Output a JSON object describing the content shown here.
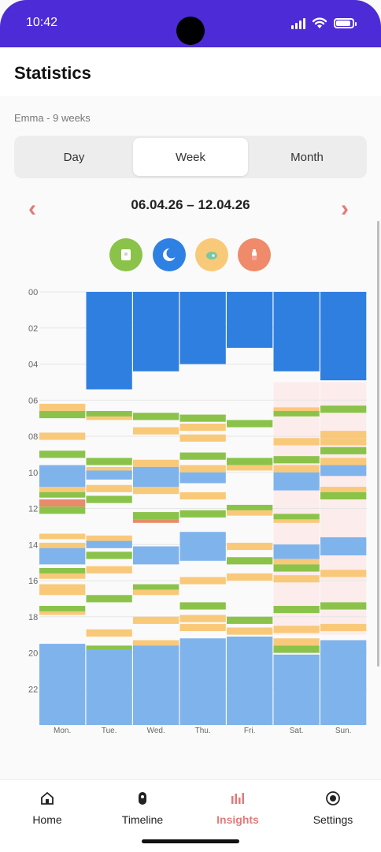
{
  "status_bar": {
    "time": "10:42"
  },
  "header": {
    "title": "Statistics"
  },
  "profile": {
    "label": "Emma - 9 weeks"
  },
  "tabs": [
    {
      "label": "Day",
      "active": false
    },
    {
      "label": "Week",
      "active": true
    },
    {
      "label": "Month",
      "active": false
    }
  ],
  "period": {
    "range": "06.04.26 – 12.04.26",
    "prev_icon": "chevron-left-icon",
    "next_icon": "chevron-right-icon"
  },
  "filters": [
    {
      "name": "diaper",
      "icon": "diaper-icon",
      "color": "#8bc34a"
    },
    {
      "name": "sleep",
      "icon": "moon-icon",
      "color": "#2f80e3"
    },
    {
      "name": "feeding",
      "icon": "breast-icon",
      "color": "#f9c97a"
    },
    {
      "name": "bottle",
      "icon": "bottle-icon",
      "color": "#ef8a6a"
    }
  ],
  "colors": {
    "sleep_dark": "#2f7fe0",
    "sleep_light": "#7fb3ec",
    "feeding": "#f9c97a",
    "diaper": "#8bc34a",
    "bottle": "#e88b6a",
    "weekend": "#fdecec",
    "accent": "#e37a7a"
  },
  "chart_data": {
    "type": "timeline",
    "y_ticks": [
      "00",
      "02",
      "04",
      "06",
      "08",
      "10",
      "12",
      "14",
      "16",
      "18",
      "20",
      "22"
    ],
    "y_range_hours": [
      0,
      24
    ],
    "days": [
      "Mon.",
      "Tue.",
      "Wed.",
      "Thu.",
      "Fri.",
      "Sat.",
      "Sun."
    ],
    "weekend_days": [
      "Sat.",
      "Sun."
    ],
    "weekend_highlight_hours": [
      5,
      19
    ],
    "events": {
      "Mon.": [
        {
          "type": "feeding",
          "start": 6.2,
          "end": 6.6
        },
        {
          "type": "diaper",
          "start": 6.6,
          "end": 7.0
        },
        {
          "type": "feeding",
          "start": 7.8,
          "end": 8.2
        },
        {
          "type": "diaper",
          "start": 8.8,
          "end": 9.2
        },
        {
          "type": "sleep_light",
          "start": 9.6,
          "end": 10.9
        },
        {
          "type": "feeding",
          "start": 10.8,
          "end": 11.2
        },
        {
          "type": "diaper",
          "start": 11.1,
          "end": 11.4
        },
        {
          "type": "bottle",
          "start": 11.5,
          "end": 11.9
        },
        {
          "type": "diaper",
          "start": 11.9,
          "end": 12.3
        },
        {
          "type": "feeding",
          "start": 13.4,
          "end": 13.7
        },
        {
          "type": "feeding",
          "start": 13.9,
          "end": 14.3
        },
        {
          "type": "sleep_light",
          "start": 14.2,
          "end": 15.1
        },
        {
          "type": "diaper",
          "start": 15.3,
          "end": 15.7
        },
        {
          "type": "feeding",
          "start": 15.6,
          "end": 15.9
        },
        {
          "type": "feeding",
          "start": 16.2,
          "end": 16.8
        },
        {
          "type": "diaper",
          "start": 17.4,
          "end": 17.8
        },
        {
          "type": "feeding",
          "start": 17.7,
          "end": 17.9
        },
        {
          "type": "sleep_light",
          "start": 19.5,
          "end": 24
        }
      ],
      "Tue.": [
        {
          "type": "sleep_dark",
          "start": 0,
          "end": 5.4
        },
        {
          "type": "diaper",
          "start": 6.6,
          "end": 7.0
        },
        {
          "type": "feeding",
          "start": 6.9,
          "end": 7.1
        },
        {
          "type": "diaper",
          "start": 9.2,
          "end": 9.6
        },
        {
          "type": "feeding",
          "start": 9.7,
          "end": 9.9
        },
        {
          "type": "sleep_light",
          "start": 9.9,
          "end": 10.4
        },
        {
          "type": "feeding",
          "start": 10.7,
          "end": 11.1
        },
        {
          "type": "diaper",
          "start": 11.3,
          "end": 11.7
        },
        {
          "type": "feeding",
          "start": 13.5,
          "end": 13.9
        },
        {
          "type": "sleep_light",
          "start": 13.8,
          "end": 14.2
        },
        {
          "type": "diaper",
          "start": 14.4,
          "end": 14.8
        },
        {
          "type": "feeding",
          "start": 15.2,
          "end": 15.6
        },
        {
          "type": "diaper",
          "start": 16.8,
          "end": 17.2
        },
        {
          "type": "feeding",
          "start": 18.7,
          "end": 19.1
        },
        {
          "type": "diaper",
          "start": 19.6,
          "end": 20.0
        },
        {
          "type": "sleep_light",
          "start": 19.8,
          "end": 24
        }
      ],
      "Wed.": [
        {
          "type": "sleep_dark",
          "start": 0,
          "end": 4.4
        },
        {
          "type": "diaper",
          "start": 6.7,
          "end": 7.1
        },
        {
          "type": "feeding",
          "start": 7.5,
          "end": 7.9
        },
        {
          "type": "feeding",
          "start": 9.3,
          "end": 9.7
        },
        {
          "type": "sleep_light",
          "start": 9.7,
          "end": 10.8
        },
        {
          "type": "feeding",
          "start": 10.8,
          "end": 11.2
        },
        {
          "type": "diaper",
          "start": 12.2,
          "end": 12.6
        },
        {
          "type": "bottle",
          "start": 12.6,
          "end": 12.8
        },
        {
          "type": "sleep_light",
          "start": 14.1,
          "end": 15.1
        },
        {
          "type": "diaper",
          "start": 16.2,
          "end": 16.6
        },
        {
          "type": "feeding",
          "start": 16.5,
          "end": 16.8
        },
        {
          "type": "feeding",
          "start": 18.0,
          "end": 18.4
        },
        {
          "type": "feeding",
          "start": 19.3,
          "end": 19.7
        },
        {
          "type": "sleep_light",
          "start": 19.6,
          "end": 24
        }
      ],
      "Thu.": [
        {
          "type": "sleep_dark",
          "start": 0,
          "end": 4.0
        },
        {
          "type": "diaper",
          "start": 6.8,
          "end": 7.2
        },
        {
          "type": "feeding",
          "start": 7.3,
          "end": 7.7
        },
        {
          "type": "feeding",
          "start": 7.9,
          "end": 8.3
        },
        {
          "type": "diaper",
          "start": 8.9,
          "end": 9.3
        },
        {
          "type": "feeding",
          "start": 9.6,
          "end": 10.0
        },
        {
          "type": "sleep_light",
          "start": 10.0,
          "end": 10.6
        },
        {
          "type": "feeding",
          "start": 11.1,
          "end": 11.5
        },
        {
          "type": "diaper",
          "start": 12.1,
          "end": 12.5
        },
        {
          "type": "sleep_light",
          "start": 13.3,
          "end": 14.9
        },
        {
          "type": "feeding",
          "start": 15.8,
          "end": 16.2
        },
        {
          "type": "diaper",
          "start": 17.2,
          "end": 17.6
        },
        {
          "type": "feeding",
          "start": 17.9,
          "end": 18.3
        },
        {
          "type": "feeding",
          "start": 18.4,
          "end": 18.8
        },
        {
          "type": "sleep_light",
          "start": 19.2,
          "end": 24
        }
      ],
      "Fri.": [
        {
          "type": "sleep_dark",
          "start": 0,
          "end": 3.1
        },
        {
          "type": "diaper",
          "start": 7.1,
          "end": 7.5
        },
        {
          "type": "diaper",
          "start": 9.2,
          "end": 9.6
        },
        {
          "type": "feeding",
          "start": 9.6,
          "end": 9.9
        },
        {
          "type": "diaper",
          "start": 11.8,
          "end": 12.2
        },
        {
          "type": "feeding",
          "start": 12.1,
          "end": 12.4
        },
        {
          "type": "feeding",
          "start": 13.9,
          "end": 14.3
        },
        {
          "type": "diaper",
          "start": 14.7,
          "end": 15.1
        },
        {
          "type": "feeding",
          "start": 15.6,
          "end": 16.0
        },
        {
          "type": "diaper",
          "start": 18.0,
          "end": 18.4
        },
        {
          "type": "feeding",
          "start": 18.6,
          "end": 19.0
        },
        {
          "type": "sleep_light",
          "start": 19.1,
          "end": 24
        }
      ],
      "Sat.": [
        {
          "type": "sleep_dark",
          "start": 0,
          "end": 4.4
        },
        {
          "type": "feeding",
          "start": 6.4,
          "end": 6.7
        },
        {
          "type": "diaper",
          "start": 6.6,
          "end": 6.9
        },
        {
          "type": "feeding",
          "start": 8.1,
          "end": 8.5
        },
        {
          "type": "diaper",
          "start": 9.1,
          "end": 9.5
        },
        {
          "type": "feeding",
          "start": 9.6,
          "end": 10.0
        },
        {
          "type": "sleep_light",
          "start": 10.0,
          "end": 11.0
        },
        {
          "type": "diaper",
          "start": 12.3,
          "end": 12.7
        },
        {
          "type": "feeding",
          "start": 12.6,
          "end": 12.8
        },
        {
          "type": "sleep_light",
          "start": 14.0,
          "end": 14.8
        },
        {
          "type": "feeding",
          "start": 14.8,
          "end": 15.1
        },
        {
          "type": "diaper",
          "start": 15.1,
          "end": 15.5
        },
        {
          "type": "feeding",
          "start": 15.7,
          "end": 16.1
        },
        {
          "type": "diaper",
          "start": 17.4,
          "end": 17.8
        },
        {
          "type": "feeding",
          "start": 18.5,
          "end": 18.9
        },
        {
          "type": "feeding",
          "start": 19.2,
          "end": 19.6
        },
        {
          "type": "diaper",
          "start": 19.6,
          "end": 20.0
        },
        {
          "type": "sleep_light",
          "start": 20.1,
          "end": 24
        }
      ],
      "Sun.": [
        {
          "type": "sleep_dark",
          "start": 0,
          "end": 4.9
        },
        {
          "type": "diaper",
          "start": 6.3,
          "end": 6.7
        },
        {
          "type": "feeding",
          "start": 7.7,
          "end": 8.1
        },
        {
          "type": "feeding",
          "start": 8.1,
          "end": 8.5
        },
        {
          "type": "diaper",
          "start": 8.6,
          "end": 9.0
        },
        {
          "type": "feeding",
          "start": 9.2,
          "end": 9.6
        },
        {
          "type": "sleep_light",
          "start": 9.6,
          "end": 10.2
        },
        {
          "type": "feeding",
          "start": 10.8,
          "end": 11.1
        },
        {
          "type": "diaper",
          "start": 11.1,
          "end": 11.5
        },
        {
          "type": "sleep_light",
          "start": 13.6,
          "end": 14.6
        },
        {
          "type": "feeding",
          "start": 15.4,
          "end": 15.8
        },
        {
          "type": "diaper",
          "start": 17.2,
          "end": 17.6
        },
        {
          "type": "feeding",
          "start": 18.4,
          "end": 18.8
        },
        {
          "type": "sleep_light",
          "start": 19.3,
          "end": 24
        }
      ]
    }
  },
  "bottom_nav": [
    {
      "label": "Home",
      "icon": "home-icon",
      "active": false
    },
    {
      "label": "Timeline",
      "icon": "timeline-icon",
      "active": false
    },
    {
      "label": "Insights",
      "icon": "insights-icon",
      "active": true
    },
    {
      "label": "Settings",
      "icon": "settings-icon",
      "active": false
    }
  ]
}
